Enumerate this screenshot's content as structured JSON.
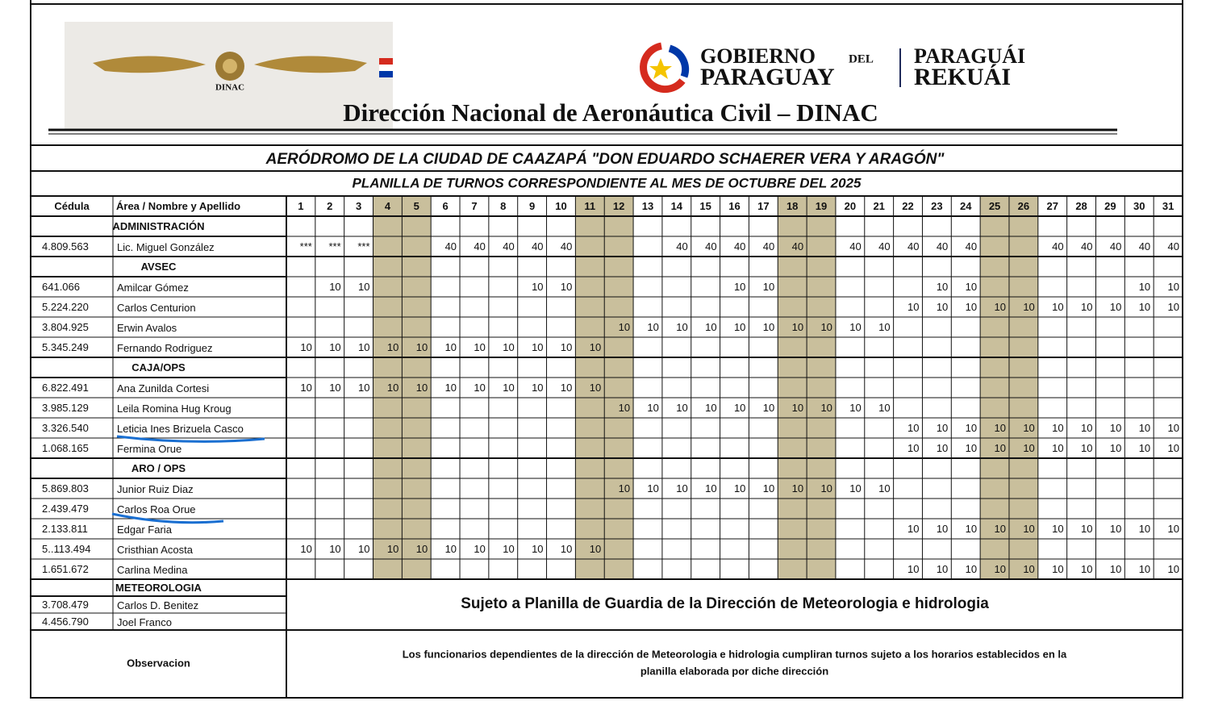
{
  "header": {
    "logo_text": "DINAC",
    "gov_line1": "GOBIERNO",
    "gov_del": "DEL",
    "gov_line2": "PARAGUAY",
    "gov_line3": "PARAGUÁI",
    "gov_line4": "REKUÁI",
    "title": "Dirección Nacional de Aeronáutica Civil – DINAC"
  },
  "aerodrome": "AERÓDROMO DE LA CIUDAD DE CAAZAPÁ \"DON EDUARDO SCHAERER VERA Y ARAGÓN\"",
  "subtitle": "PLANILLA DE TURNOS CORRESPONDIENTE AL MES DE OCTUBRE DEL 2025",
  "table": {
    "columns": [
      "Cédula",
      "Área / Nombre y Apellido"
    ],
    "days": [
      1,
      2,
      3,
      4,
      5,
      6,
      7,
      8,
      9,
      10,
      11,
      12,
      13,
      14,
      15,
      16,
      17,
      18,
      19,
      20,
      21,
      22,
      23,
      24,
      25,
      26,
      27,
      28,
      29,
      30,
      31
    ],
    "sections": [
      {
        "title": "ADMINISTRACIÓN",
        "rows": [
          {
            "cedula": "4.809.563",
            "name": "Lic. Miguel González",
            "shifts": [
              "***",
              "***",
              "***",
              null,
              null,
              40,
              40,
              40,
              40,
              40,
              null,
              null,
              null,
              40,
              40,
              40,
              40,
              40,
              null,
              40,
              40,
              40,
              40,
              40,
              null,
              null,
              40,
              40,
              40,
              40,
              40
            ]
          }
        ]
      },
      {
        "title": "AVSEC",
        "rows": [
          {
            "cedula": "641.066",
            "name": "Amilcar Gómez",
            "shifts": [
              null,
              10,
              10,
              null,
              null,
              null,
              null,
              null,
              10,
              10,
              null,
              null,
              null,
              null,
              null,
              10,
              10,
              null,
              null,
              null,
              null,
              null,
              10,
              10,
              null,
              null,
              null,
              null,
              null,
              10,
              10
            ]
          },
          {
            "cedula": "5.224.220",
            "name": "Carlos Centurion",
            "shifts": [
              null,
              null,
              null,
              null,
              null,
              null,
              null,
              null,
              null,
              null,
              null,
              null,
              null,
              null,
              null,
              null,
              null,
              null,
              null,
              null,
              null,
              10,
              10,
              10,
              10,
              10,
              10,
              10,
              10,
              10,
              10
            ]
          },
          {
            "cedula": "3.804.925",
            "name": "Erwin Avalos",
            "shifts": [
              null,
              null,
              null,
              null,
              null,
              null,
              null,
              null,
              null,
              null,
              null,
              10,
              10,
              10,
              10,
              10,
              10,
              10,
              10,
              10,
              10,
              null,
              null,
              null,
              null,
              null,
              null,
              null,
              null,
              null,
              null
            ]
          },
          {
            "cedula": "5.345.249",
            "name": "Fernando Rodriguez",
            "shifts": [
              10,
              10,
              10,
              10,
              10,
              10,
              10,
              10,
              10,
              10,
              10,
              null,
              null,
              null,
              null,
              null,
              null,
              null,
              null,
              null,
              null,
              null,
              null,
              null,
              null,
              null,
              null,
              null,
              null,
              null,
              null
            ]
          }
        ]
      },
      {
        "title": "CAJA/OPS",
        "rows": [
          {
            "cedula": "6.822.491",
            "name": "Ana Zunilda Cortesi",
            "shifts": [
              10,
              10,
              10,
              10,
              10,
              10,
              10,
              10,
              10,
              10,
              10,
              null,
              null,
              null,
              null,
              null,
              null,
              null,
              null,
              null,
              null,
              null,
              null,
              null,
              null,
              null,
              null,
              null,
              null,
              null,
              null
            ]
          },
          {
            "cedula": "3.985.129",
            "name": "Leila Romina Hug Kroug",
            "shifts": [
              null,
              null,
              null,
              null,
              null,
              null,
              null,
              null,
              null,
              null,
              null,
              10,
              10,
              10,
              10,
              10,
              10,
              10,
              10,
              10,
              10,
              null,
              null,
              null,
              null,
              null,
              null,
              null,
              null,
              null,
              null
            ]
          },
          {
            "cedula": "3.326.540",
            "name": "Leticia Ines Brizuela  Casco",
            "shifts": [
              null,
              null,
              null,
              null,
              null,
              null,
              null,
              null,
              null,
              null,
              null,
              null,
              null,
              null,
              null,
              null,
              null,
              null,
              null,
              null,
              null,
              10,
              10,
              10,
              10,
              10,
              10,
              10,
              10,
              10,
              10
            ]
          },
          {
            "cedula": "1.068.165",
            "name": "Fermina Orue",
            "shifts": [
              null,
              null,
              null,
              null,
              null,
              null,
              null,
              null,
              null,
              null,
              null,
              null,
              null,
              null,
              null,
              null,
              null,
              null,
              null,
              null,
              null,
              10,
              10,
              10,
              10,
              10,
              10,
              10,
              10,
              10,
              10
            ]
          }
        ]
      },
      {
        "title": "ARO / OPS",
        "rows": [
          {
            "cedula": "5.869.803",
            "name": "Junior Ruiz Diaz",
            "shifts": [
              null,
              null,
              null,
              null,
              null,
              null,
              null,
              null,
              null,
              null,
              null,
              10,
              10,
              10,
              10,
              10,
              10,
              10,
              10,
              10,
              10,
              null,
              null,
              null,
              null,
              null,
              null,
              null,
              null,
              null,
              null
            ]
          },
          {
            "cedula": "2.439.479",
            "name": "Carlos Roa Orue",
            "shifts": [
              null,
              null,
              null,
              null,
              null,
              null,
              null,
              null,
              null,
              null,
              null,
              null,
              null,
              null,
              null,
              null,
              null,
              null,
              null,
              null,
              null,
              null,
              null,
              null,
              null,
              null,
              null,
              null,
              null,
              null,
              null
            ]
          },
          {
            "cedula": "2.133.811",
            "name": "Edgar Faria",
            "shifts": [
              null,
              null,
              null,
              null,
              null,
              null,
              null,
              null,
              null,
              null,
              null,
              null,
              null,
              null,
              null,
              null,
              null,
              null,
              null,
              null,
              null,
              10,
              10,
              10,
              10,
              10,
              10,
              10,
              10,
              10,
              10
            ]
          },
          {
            "cedula": "5..113.494",
            "name": "Cristhian Acosta",
            "shifts": [
              10,
              10,
              10,
              10,
              10,
              10,
              10,
              10,
              10,
              10,
              10,
              null,
              null,
              null,
              null,
              null,
              null,
              null,
              null,
              null,
              null,
              null,
              null,
              null,
              null,
              null,
              null,
              null,
              null,
              null,
              null
            ]
          },
          {
            "cedula": "1.651.672",
            "name": "Carlina Medina",
            "shifts": [
              null,
              null,
              null,
              null,
              null,
              null,
              null,
              null,
              null,
              null,
              null,
              null,
              null,
              null,
              null,
              null,
              null,
              null,
              null,
              null,
              null,
              10,
              10,
              10,
              10,
              10,
              10,
              10,
              10,
              10,
              10
            ]
          }
        ]
      },
      {
        "title": "METEOROLOGIA",
        "rows": [
          {
            "cedula": "3.708.479",
            "name": "Carlos D. Benitez"
          },
          {
            "cedula": "4.456.790",
            "name": "Joel Franco"
          }
        ]
      }
    ]
  },
  "meteorology_note": "Sujeto a Planilla de Guardia de la Dirección de Meteorologia e hidrologia",
  "observation": {
    "label": "Observacion",
    "text_line1": "Los funcionarios dependientes de la dirección de Meteorologia e hidrologia cumpliran turnos sujeto a los horarios establecidos en la",
    "text_line2": "planilla elaborada por diche dirección"
  }
}
